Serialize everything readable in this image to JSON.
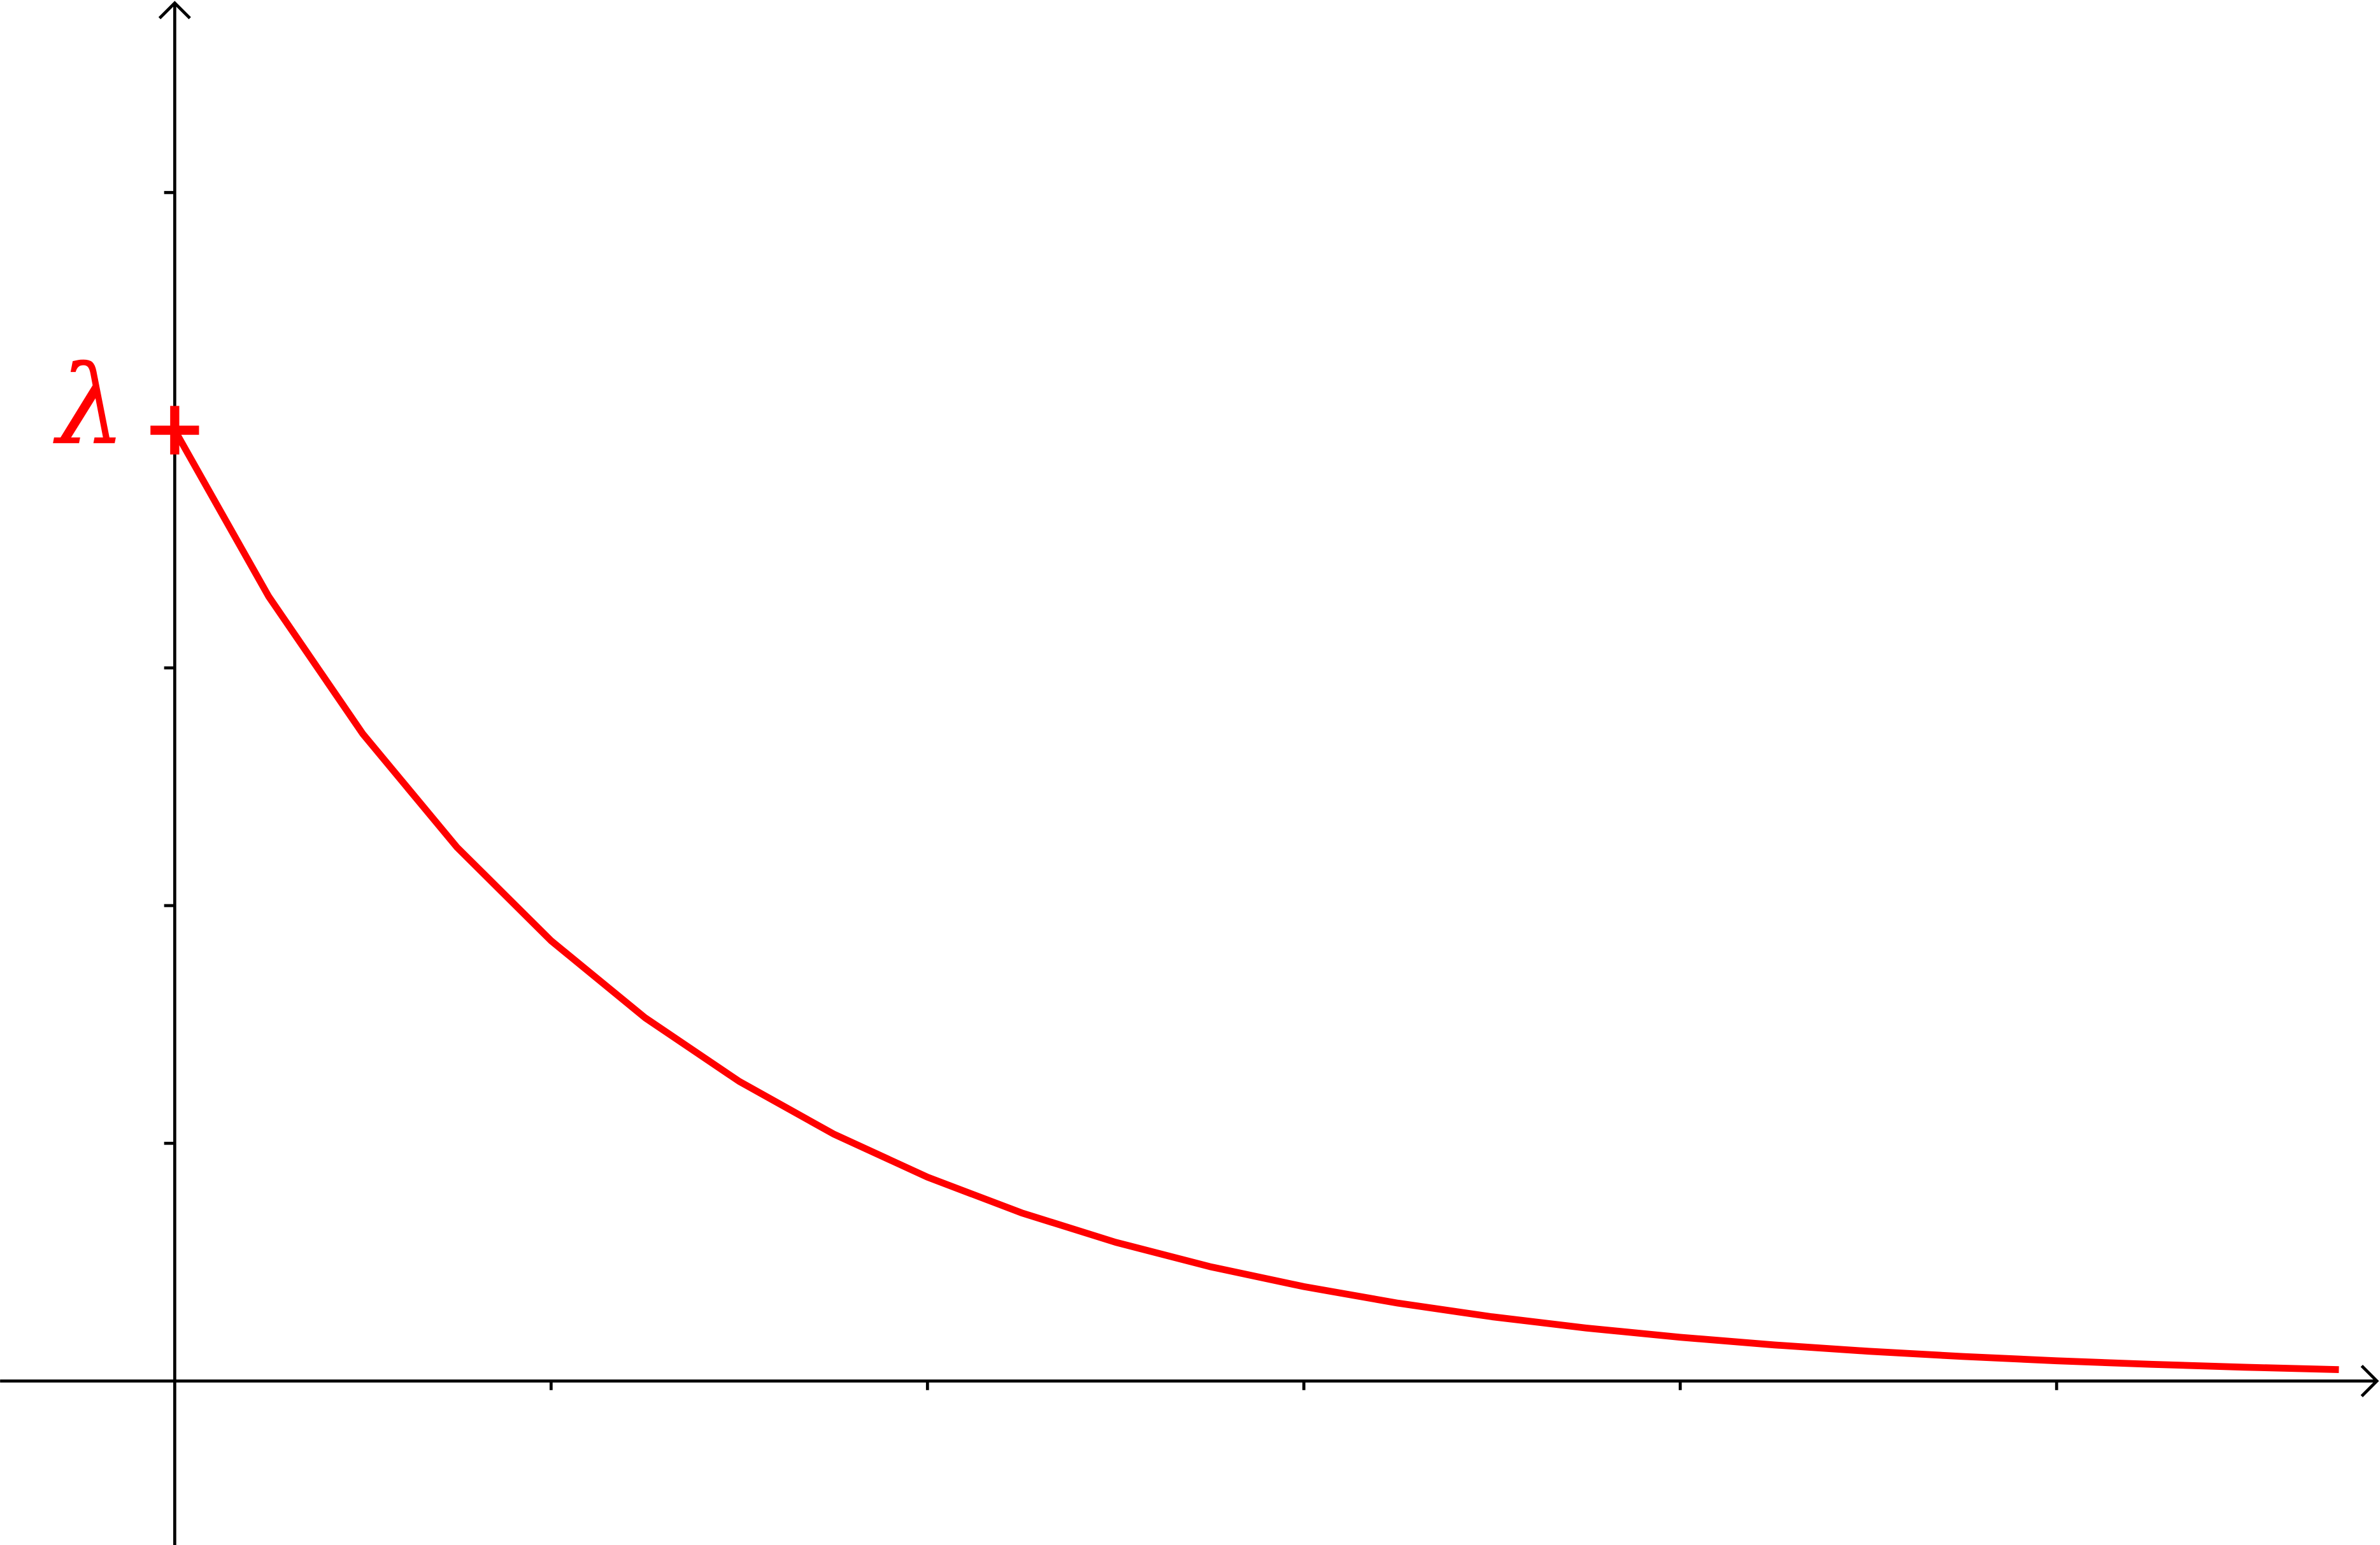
{
  "chart_data": {
    "type": "line",
    "point_label": "λ",
    "x": [
      0,
      0.25,
      0.5,
      0.75,
      1,
      1.25,
      1.5,
      1.75,
      2,
      2.25,
      2.5,
      2.75,
      3,
      3.25,
      3.5,
      3.75,
      4,
      4.25,
      4.5,
      4.75,
      5,
      5.25,
      5.5,
      5.75
    ],
    "series": [
      {
        "color": "#ff0000",
        "values": [
          4,
          3.2996,
          2.7218,
          2.2452,
          1.8521,
          1.5278,
          1.2603,
          1.0396,
          0.8576,
          0.7074,
          0.5835,
          0.4813,
          0.3971,
          0.3275,
          0.2702,
          0.2229,
          0.1839,
          0.1517,
          0.1251,
          0.1032,
          0.0851,
          0.0702,
          0.0579,
          0.0478
        ]
      }
    ],
    "xlim": [
      -0.464,
      5.859
    ],
    "ylim": [
      -0.69,
      5.81
    ],
    "xticks": [
      1,
      2,
      3,
      4,
      5
    ],
    "yticks": [
      1,
      2,
      3,
      4,
      5
    ]
  }
}
